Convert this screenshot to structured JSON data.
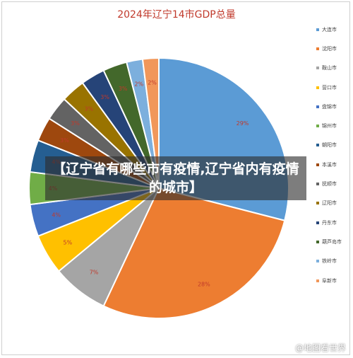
{
  "chart_data": {
    "type": "pie",
    "title": "2024年辽宁14市GDP总量",
    "slices": [
      {
        "label": "大连市",
        "value": 29,
        "color": "#5b9bd5"
      },
      {
        "label": "沈阳市",
        "value": 28,
        "color": "#ed7d31"
      },
      {
        "label": "鞍山市",
        "value": 7,
        "color": "#a5a5a5"
      },
      {
        "label": "营口市",
        "value": 5,
        "color": "#ffc000"
      },
      {
        "label": "盘锦市",
        "value": 4,
        "color": "#4472c4"
      },
      {
        "label": "锦州市",
        "value": 4,
        "color": "#70ad47"
      },
      {
        "label": "朝阳市",
        "value": 4,
        "color": "#255e91"
      },
      {
        "label": "本溪市",
        "value": 3,
        "color": "#9e480e"
      },
      {
        "label": "抚顺市",
        "value": 3,
        "color": "#636363"
      },
      {
        "label": "辽阳市",
        "value": 3,
        "color": "#997300"
      },
      {
        "label": "丹东市",
        "value": 3,
        "color": "#264478"
      },
      {
        "label": "葫芦岛市",
        "value": 3,
        "color": "#43682b"
      },
      {
        "label": "铁岭市",
        "value": 2,
        "color": "#7cafdd"
      },
      {
        "label": "阜新市",
        "value": 2,
        "color": "#f1975a"
      }
    ],
    "value_suffix": "%",
    "legend_position": "right"
  },
  "overlay": {
    "text": "【辽宁省有哪些市有疫情,辽宁省内有疫情的城市】"
  },
  "watermark": {
    "text": "@地图看世界"
  },
  "colors": {
    "title": "#c0392b",
    "label": "#c0392b"
  }
}
